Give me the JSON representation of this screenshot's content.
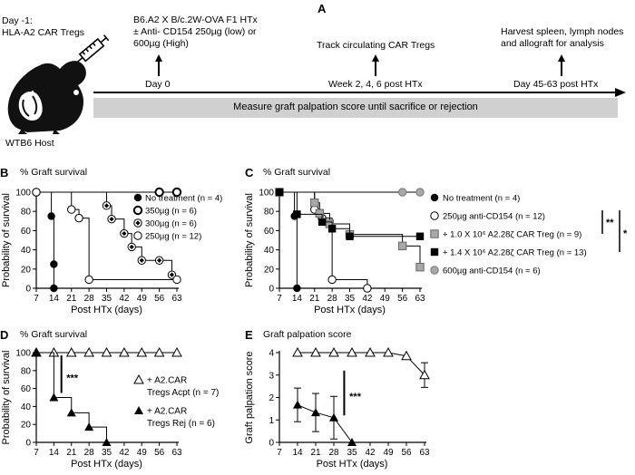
{
  "panel_a": {
    "letter": "A",
    "day_minus1": "Day -1:",
    "car_tregs": "HLA-A2 CAR Tregs",
    "host": "WTB6 Host",
    "event1": [
      "B6.A2 X B/c.2W-OVA F1 HTx",
      "± Anti- CD154 250µg (low) or",
      "600µg (High)"
    ],
    "event2": "Track circulating CAR Tregs",
    "event3": [
      "Harvest spleen, lymph nodes",
      "and allograft for analysis"
    ],
    "day0": "Day 0",
    "weeks": "Week 2, 4, 6 post HTx",
    "day_end": "Day 45-63 post HTx",
    "bar_text": "Measure graft palpation score until sacrifice or rejection"
  },
  "chart_data": [
    {
      "panel": "B",
      "type": "line",
      "title": "% Graft survival",
      "xlabel": "Post HTx (days)",
      "ylabel": "Probability of survival",
      "xlim": [
        7,
        63
      ],
      "ylim": [
        0,
        100
      ],
      "xticks": [
        7,
        14,
        21,
        28,
        35,
        42,
        49,
        56,
        63
      ],
      "yticks": [
        0,
        20,
        40,
        60,
        80,
        100
      ],
      "series": [
        {
          "name": "No treatment",
          "n": "(n = 4)",
          "marker": "filled-circle",
          "x": [
            7,
            13,
            14
          ],
          "y": [
            100,
            75,
            25
          ],
          "end": [
            14,
            0
          ]
        },
        {
          "name": "350µg",
          "n": "(n = 6)",
          "marker": "bold-open-circle",
          "x": [
            7,
            63
          ],
          "y": [
            100,
            100
          ]
        },
        {
          "name": "300µg",
          "n": "(n = 6)",
          "marker": "diamond-circle",
          "x": [
            7,
            35,
            37,
            42,
            45,
            49,
            56,
            61
          ],
          "y": [
            100,
            86,
            72,
            57,
            43,
            29,
            29,
            14
          ]
        },
        {
          "name": "250µg",
          "n": "(n = 12)",
          "marker": "open-circle",
          "x": [
            7,
            21,
            24,
            28,
            63
          ],
          "y": [
            100,
            82,
            73,
            9,
            9
          ]
        }
      ]
    },
    {
      "panel": "C",
      "type": "line",
      "title": "% Graft survival",
      "xlabel": "Post HTx (days)",
      "ylabel": "Probability of survival",
      "xlim": [
        7,
        63
      ],
      "ylim": [
        0,
        100
      ],
      "xticks": [
        7,
        14,
        21,
        28,
        35,
        42,
        49,
        56,
        63
      ],
      "yticks": [
        0,
        20,
        40,
        60,
        80,
        100
      ],
      "series": [
        {
          "name": "No treatment",
          "n": "(n = 4)",
          "marker": "filled-circle",
          "x": [
            7,
            13,
            14
          ],
          "y": [
            100,
            75,
            0
          ]
        },
        {
          "name": "250µg anti-CD154",
          "n": "(n = 12)",
          "marker": "open-circle",
          "x": [
            7,
            21,
            24,
            28,
            42
          ],
          "y": [
            100,
            82,
            73,
            9,
            0
          ]
        },
        {
          "name": "+ 1.0 X 10⁶ A2.28ζ CAR Treg",
          "n": "(n = 9)",
          "marker": "gray-square",
          "x": [
            7,
            21,
            23,
            27,
            35,
            56,
            63
          ],
          "y": [
            100,
            89,
            78,
            67,
            56,
            44,
            22
          ]
        },
        {
          "name": "+ 1.4 X 10⁶ A2.28ζ CAR Treg",
          "n": "(n = 13)",
          "marker": "black-square",
          "x": [
            7,
            14,
            24,
            28,
            35,
            63
          ],
          "y": [
            100,
            77,
            69,
            62,
            54,
            54
          ]
        },
        {
          "name": "600µg anti-CD154",
          "n": "(n = 6)",
          "marker": "gray-circle",
          "x": [
            7,
            63
          ],
          "y": [
            100,
            100
          ]
        }
      ],
      "significance": [
        "**",
        "*"
      ]
    },
    {
      "panel": "D",
      "type": "line",
      "title": "% Graft survival",
      "xlabel": "Post HTx (days)",
      "ylabel": "Probability of survival",
      "xlim": [
        7,
        63
      ],
      "ylim": [
        0,
        100
      ],
      "xticks": [
        7,
        14,
        21,
        28,
        35,
        42,
        49,
        56,
        63
      ],
      "yticks": [
        0,
        20,
        40,
        60,
        80,
        100
      ],
      "series": [
        {
          "name": "+ A2.CAR Tregs Acpt",
          "n": "(n = 7)",
          "marker": "open-triangle",
          "x": [
            7,
            14,
            21,
            28,
            35,
            42,
            49,
            56,
            63
          ],
          "y": [
            100,
            100,
            100,
            100,
            100,
            100,
            100,
            100,
            100
          ]
        },
        {
          "name": "+ A2.CAR Tregs Rej",
          "n": "(n = 6)",
          "marker": "filled-triangle",
          "x": [
            7,
            14,
            21,
            28,
            35
          ],
          "y": [
            100,
            50,
            33,
            17,
            0
          ]
        }
      ],
      "significance": "***"
    },
    {
      "panel": "E",
      "type": "line",
      "title": "Graft palpation score",
      "xlabel": "Post HTx (days)",
      "ylabel": "Graft palpation score",
      "xlim": [
        7,
        63
      ],
      "ylim": [
        0,
        4
      ],
      "xticks": [
        7,
        14,
        21,
        28,
        35,
        42,
        49,
        56,
        63
      ],
      "yticks": [
        0,
        1,
        2,
        3,
        4
      ],
      "series": [
        {
          "name": "+ A2.CAR Tregs Acpt",
          "marker": "open-triangle",
          "x": [
            14,
            21,
            28,
            35,
            42,
            49,
            56,
            63
          ],
          "y": [
            4,
            4,
            4,
            4,
            4,
            4,
            3.85,
            3.0
          ],
          "err": [
            0,
            0,
            0,
            0,
            0,
            0,
            0,
            0.55
          ]
        },
        {
          "name": "+ A2.CAR Tregs Rej",
          "marker": "filled-triangle",
          "x": [
            14,
            21,
            28,
            35
          ],
          "y": [
            1.67,
            1.33,
            1.1,
            0
          ],
          "err": [
            0.75,
            0.85,
            0.95,
            0
          ]
        }
      ],
      "significance": "***"
    }
  ]
}
